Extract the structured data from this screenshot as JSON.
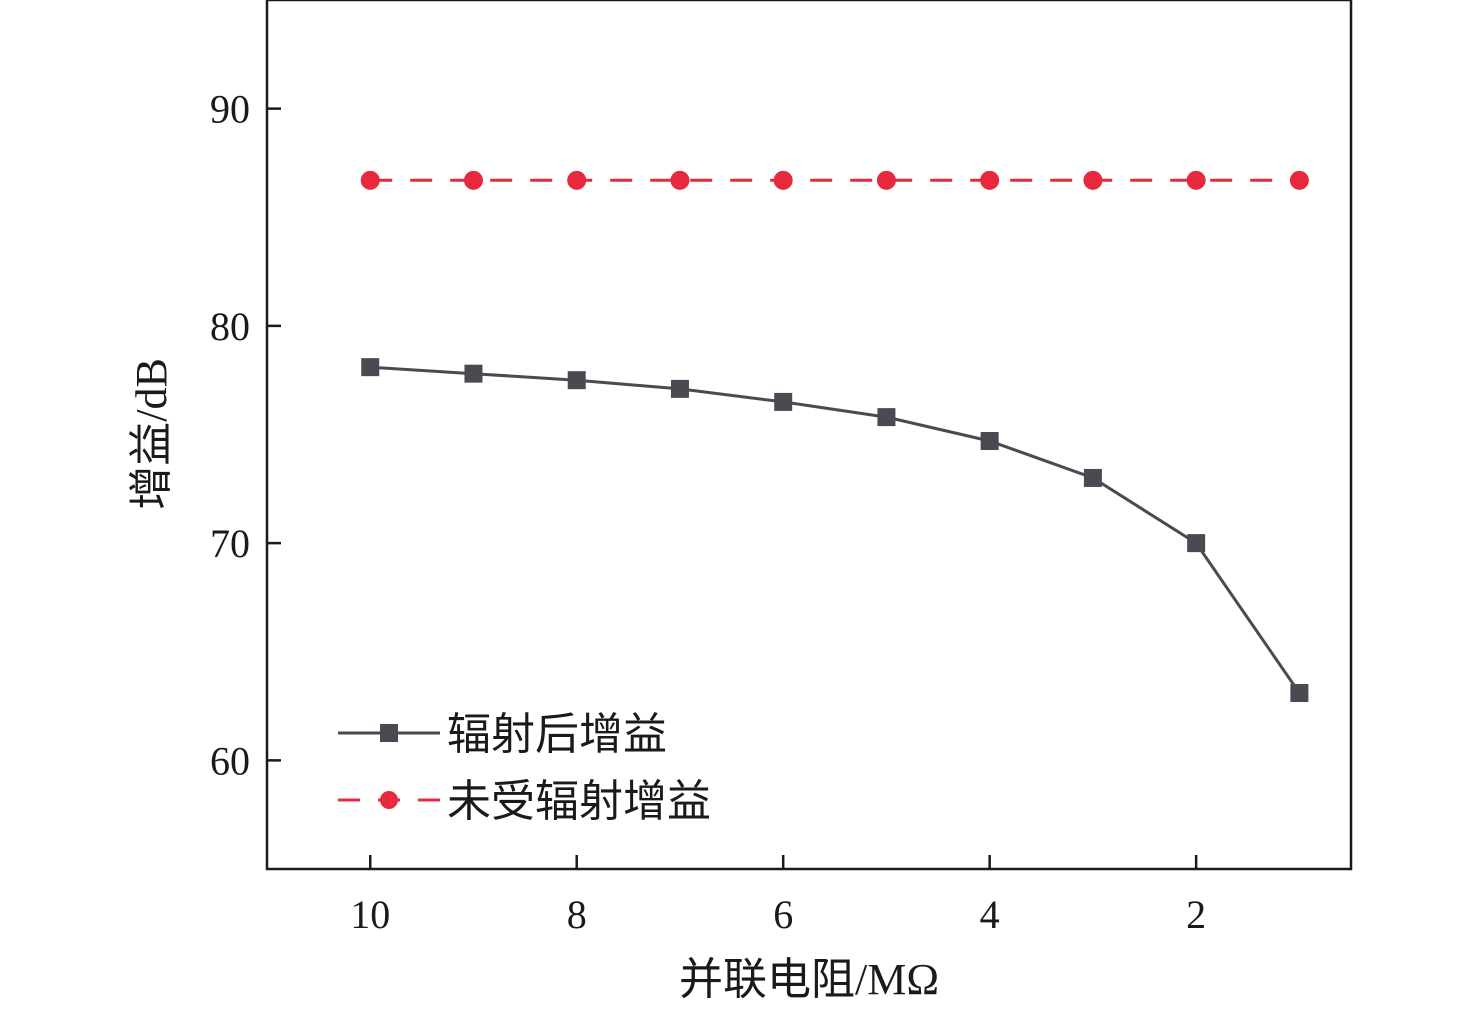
{
  "chart_data": {
    "type": "line",
    "title": "",
    "xlabel": "并联电阻/MΩ",
    "ylabel": "增益/dB",
    "x_reversed": true,
    "xlim": [
      0.5,
      11
    ],
    "ylim": [
      55,
      95
    ],
    "xticks": [
      10,
      8,
      6,
      4,
      2
    ],
    "yticks": [
      60,
      70,
      80,
      90
    ],
    "grid": false,
    "legend_position": "bottom-left",
    "x": [
      10,
      9,
      8,
      7,
      6,
      5,
      4,
      3,
      2,
      1
    ],
    "series": [
      {
        "name": "辐射后增益",
        "values": [
          78.1,
          77.8,
          77.5,
          77.1,
          76.5,
          75.8,
          74.7,
          73.0,
          70.0,
          63.1
        ],
        "color": "#4a4a52",
        "marker": "square",
        "line_style": "solid"
      },
      {
        "name": "未受辐射增益",
        "values": [
          86.7,
          86.7,
          86.7,
          86.7,
          86.7,
          86.7,
          86.7,
          86.7,
          86.7,
          86.7
        ],
        "color": "#e8283c",
        "marker": "circle",
        "line_style": "dashed"
      }
    ]
  }
}
